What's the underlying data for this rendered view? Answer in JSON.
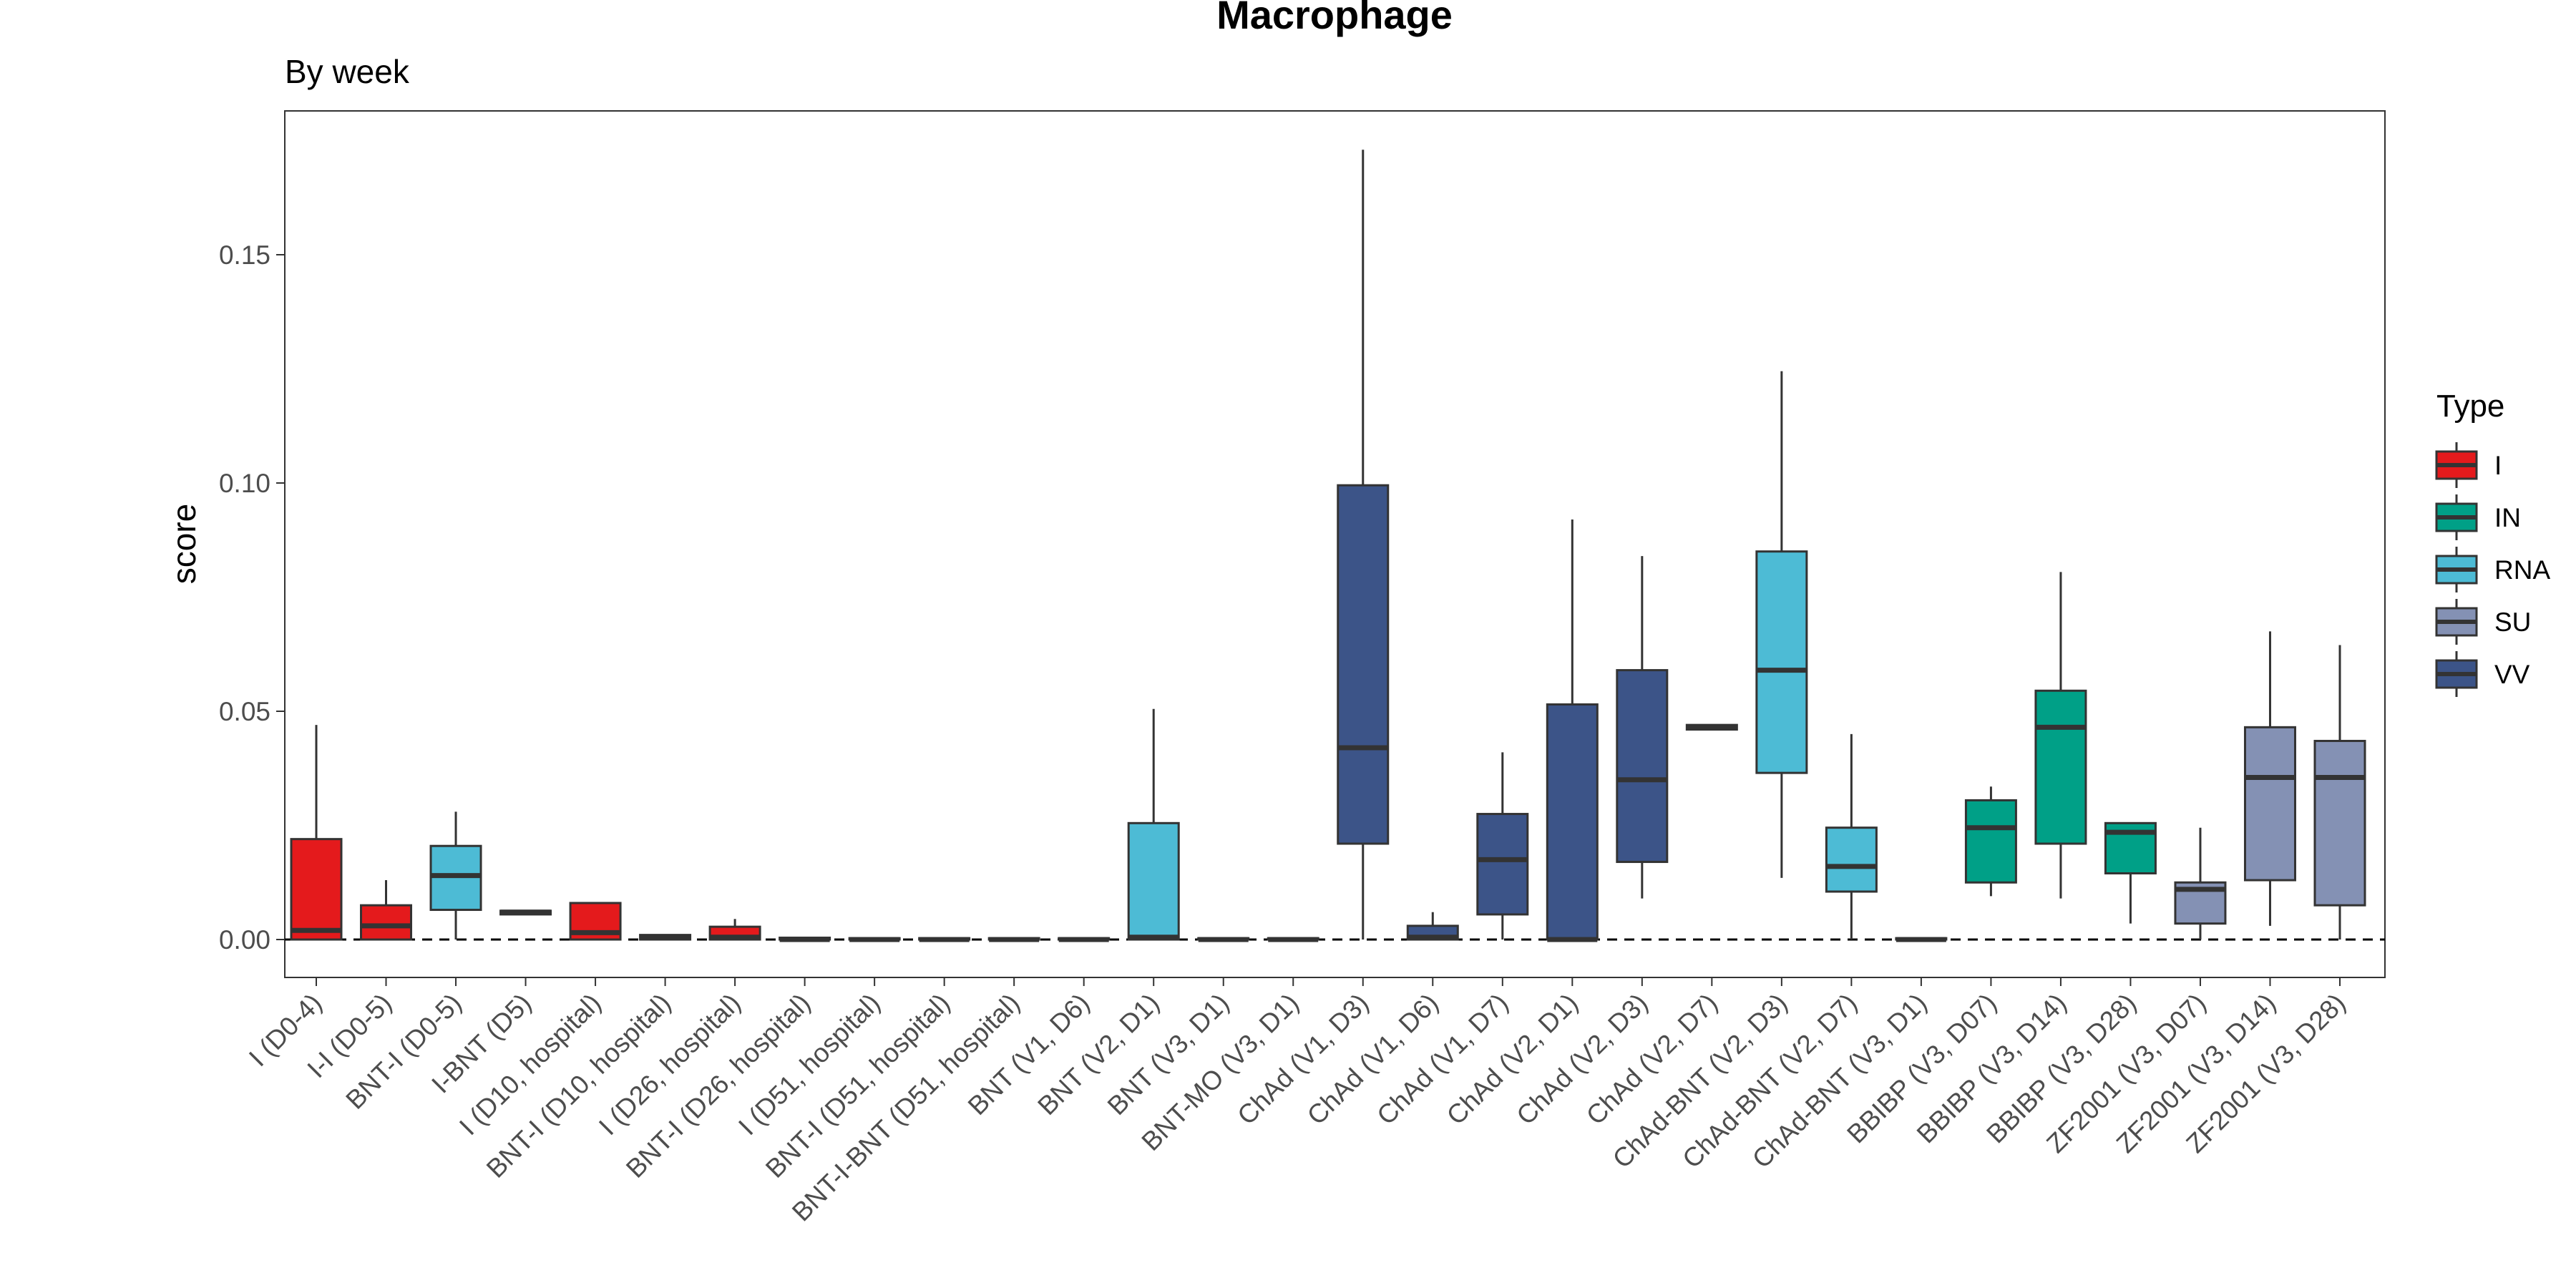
{
  "chart_data": {
    "type": "box",
    "title": "Macrophage",
    "subtitle": "By week",
    "xlabel": "",
    "ylabel": "score",
    "ylim": [
      -0.008,
      0.182
    ],
    "yticks": [
      0.0,
      0.05,
      0.1,
      0.15
    ],
    "ytick_labels": [
      "0.00",
      "0.05",
      "0.10",
      "0.15"
    ],
    "reference_line": {
      "y": 0,
      "style": "dashed"
    },
    "grid": false,
    "legend": {
      "title": "Type",
      "position": "right",
      "items": [
        {
          "label": "I",
          "color": "#E41A1C"
        },
        {
          "label": "IN",
          "color": "#00A087"
        },
        {
          "label": "RNA",
          "color": "#4DBBD5"
        },
        {
          "label": "SU",
          "color": "#8491B4"
        },
        {
          "label": "VV",
          "color": "#3C5488"
        }
      ]
    },
    "colors": {
      "I": "#E41A1C",
      "IN": "#00A087",
      "RNA": "#4DBBD5",
      "SU": "#8491B4",
      "VV": "#3C5488"
    },
    "categories": [
      {
        "label": "I (D0-4)",
        "type": "I",
        "min": 0.0,
        "q1": 0.0,
        "median": 0.002,
        "q3": 0.022,
        "max": 0.047
      },
      {
        "label": "I-I (D0-5)",
        "type": "I",
        "min": 0.0,
        "q1": 0.0,
        "median": 0.003,
        "q3": 0.0075,
        "max": 0.013
      },
      {
        "label": "BNT-I (D0-5)",
        "type": "RNA",
        "min": 0.0,
        "q1": 0.0065,
        "median": 0.014,
        "q3": 0.0205,
        "max": 0.028
      },
      {
        "label": "I-BNT (D5)",
        "type": "RNA",
        "min": 0.0055,
        "q1": 0.0055,
        "median": 0.006,
        "q3": 0.0063,
        "max": 0.0063
      },
      {
        "label": "I (D10, hospital)",
        "type": "I",
        "min": 0.0,
        "q1": 0.0,
        "median": 0.0015,
        "q3": 0.008,
        "max": 0.008
      },
      {
        "label": "BNT-I (D10, hospital)",
        "type": "RNA",
        "min": 0.0,
        "q1": 0.0,
        "median": 0.0005,
        "q3": 0.001,
        "max": 0.001
      },
      {
        "label": "I (D26, hospital)",
        "type": "I",
        "min": 0.0,
        "q1": 0.0,
        "median": 0.0005,
        "q3": 0.0028,
        "max": 0.0045
      },
      {
        "label": "BNT-I (D26, hospital)",
        "type": "RNA",
        "min": 0.0,
        "q1": 0.0,
        "median": 0.0,
        "q3": 0.0004,
        "max": 0.0004
      },
      {
        "label": "I (D51, hospital)",
        "type": "I",
        "min": 0.0,
        "q1": 0.0,
        "median": 0.0,
        "q3": 0.0003,
        "max": 0.0003
      },
      {
        "label": "BNT-I (D51, hospital)",
        "type": "RNA",
        "min": 0.0,
        "q1": 0.0,
        "median": 0.0,
        "q3": 0.0003,
        "max": 0.0003
      },
      {
        "label": "BNT-I-BNT (D51, hospital)",
        "type": "RNA",
        "min": 0.0,
        "q1": 0.0,
        "median": 0.0,
        "q3": 0.0003,
        "max": 0.0003
      },
      {
        "label": "BNT (V1, D6)",
        "type": "RNA",
        "min": 0.0,
        "q1": 0.0,
        "median": 0.0,
        "q3": 0.0003,
        "max": 0.0003
      },
      {
        "label": "BNT (V2, D1)",
        "type": "RNA",
        "min": 0.0,
        "q1": 0.0,
        "median": 0.0005,
        "q3": 0.0255,
        "max": 0.0505
      },
      {
        "label": "BNT (V3, D1)",
        "type": "RNA",
        "min": 0.0,
        "q1": 0.0,
        "median": 0.0,
        "q3": 0.0003,
        "max": 0.0003
      },
      {
        "label": "BNT-MO (V3, D1)",
        "type": "RNA",
        "min": 0.0,
        "q1": 0.0,
        "median": 0.0,
        "q3": 0.0003,
        "max": 0.0003
      },
      {
        "label": "ChAd (V1, D3)",
        "type": "VV",
        "min": 0.0,
        "q1": 0.021,
        "median": 0.042,
        "q3": 0.0995,
        "max": 0.173
      },
      {
        "label": "ChAd (V1, D6)",
        "type": "VV",
        "min": 0.0,
        "q1": 0.0,
        "median": 0.0005,
        "q3": 0.003,
        "max": 0.006
      },
      {
        "label": "ChAd (V1, D7)",
        "type": "VV",
        "min": 0.0,
        "q1": 0.0055,
        "median": 0.0175,
        "q3": 0.0275,
        "max": 0.041
      },
      {
        "label": "ChAd (V2, D1)",
        "type": "VV",
        "min": 0.0,
        "q1": 0.0,
        "median": 0.0,
        "q3": 0.0515,
        "max": 0.092
      },
      {
        "label": "ChAd (V2, D3)",
        "type": "VV",
        "min": 0.009,
        "q1": 0.017,
        "median": 0.035,
        "q3": 0.059,
        "max": 0.084
      },
      {
        "label": "ChAd (V2, D7)",
        "type": "VV",
        "min": 0.046,
        "q1": 0.046,
        "median": 0.0465,
        "q3": 0.047,
        "max": 0.047
      },
      {
        "label": "ChAd-BNT (V2, D3)",
        "type": "RNA",
        "min": 0.0135,
        "q1": 0.0365,
        "median": 0.059,
        "q3": 0.085,
        "max": 0.1245
      },
      {
        "label": "ChAd-BNT (V2, D7)",
        "type": "RNA",
        "min": 0.0,
        "q1": 0.0105,
        "median": 0.016,
        "q3": 0.0245,
        "max": 0.045
      },
      {
        "label": "ChAd-BNT (V3, D1)",
        "type": "RNA",
        "min": 0.0,
        "q1": 0.0,
        "median": 0.0,
        "q3": 0.0003,
        "max": 0.0003
      },
      {
        "label": "BBIBP (V3, D07)",
        "type": "IN",
        "min": 0.0095,
        "q1": 0.0125,
        "median": 0.0245,
        "q3": 0.0305,
        "max": 0.0335
      },
      {
        "label": "BBIBP (V3, D14)",
        "type": "IN",
        "min": 0.009,
        "q1": 0.021,
        "median": 0.0465,
        "q3": 0.0545,
        "max": 0.0805
      },
      {
        "label": "BBIBP (V3, D28)",
        "type": "IN",
        "min": 0.0035,
        "q1": 0.0145,
        "median": 0.0235,
        "q3": 0.0255,
        "max": 0.0255
      },
      {
        "label": "ZF2001 (V3, D07)",
        "type": "SU",
        "min": 0.0,
        "q1": 0.0035,
        "median": 0.011,
        "q3": 0.0125,
        "max": 0.0245
      },
      {
        "label": "ZF2001 (V3, D14)",
        "type": "SU",
        "min": 0.003,
        "q1": 0.013,
        "median": 0.0355,
        "q3": 0.0465,
        "max": 0.0675
      },
      {
        "label": "ZF2001 (V3, D28)",
        "type": "SU",
        "min": 0.0,
        "q1": 0.0075,
        "median": 0.0355,
        "q3": 0.0435,
        "max": 0.0645
      }
    ]
  }
}
